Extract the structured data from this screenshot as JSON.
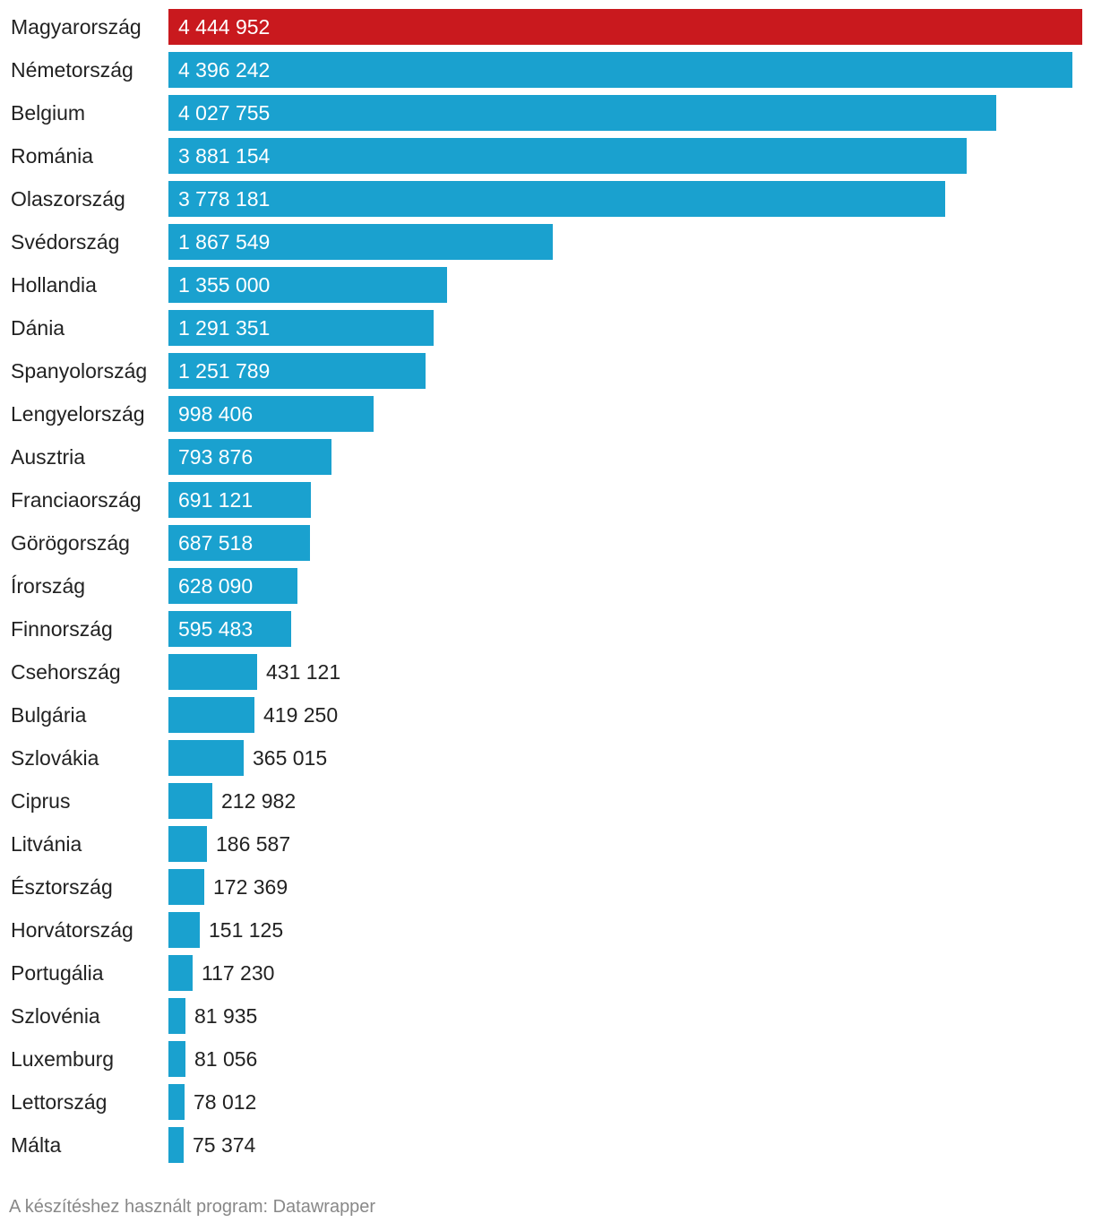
{
  "chart_data": {
    "type": "bar",
    "orientation": "horizontal",
    "categories": [
      "Magyarország",
      "Németország",
      "Belgium",
      "Románia",
      "Olaszország",
      "Svédország",
      "Hollandia",
      "Dánia",
      "Spanyolország",
      "Lengyelország",
      "Ausztria",
      "Franciaország",
      "Görögország",
      "Írország",
      "Finnország",
      "Csehország",
      "Bulgária",
      "Szlovákia",
      "Ciprus",
      "Litvánia",
      "Észtország",
      "Horvátország",
      "Portugália",
      "Szlovénia",
      "Luxemburg",
      "Lettország",
      "Málta"
    ],
    "values": [
      4444952,
      4396242,
      4027755,
      3881154,
      3778181,
      1867549,
      1355000,
      1291351,
      1251789,
      998406,
      793876,
      691121,
      687518,
      628090,
      595483,
      431121,
      419250,
      365015,
      212982,
      186587,
      172369,
      151125,
      117230,
      81935,
      81056,
      78012,
      75374
    ],
    "value_labels": [
      "4 444 952",
      "4 396 242",
      "4 027 755",
      "3 881 154",
      "3 778 181",
      "1 867 549",
      "1 355 000",
      "1 291 351",
      "1 251 789",
      "998 406",
      "793 876",
      "691 121",
      "687 518",
      "628 090",
      "595 483",
      "431 121",
      "419 250",
      "365 015",
      "212 982",
      "186 587",
      "172 369",
      "151 125",
      "117 230",
      "81 935",
      "81 056",
      "78 012",
      "75 374"
    ],
    "highlight_index": 0,
    "colors": {
      "default": "#1aa1cf",
      "highlight": "#c9191e"
    },
    "title": "",
    "xlabel": "",
    "ylabel": "",
    "grid": false,
    "legend": "none"
  },
  "footer": {
    "text": "A készítéshez használt program: Datawrapper"
  }
}
